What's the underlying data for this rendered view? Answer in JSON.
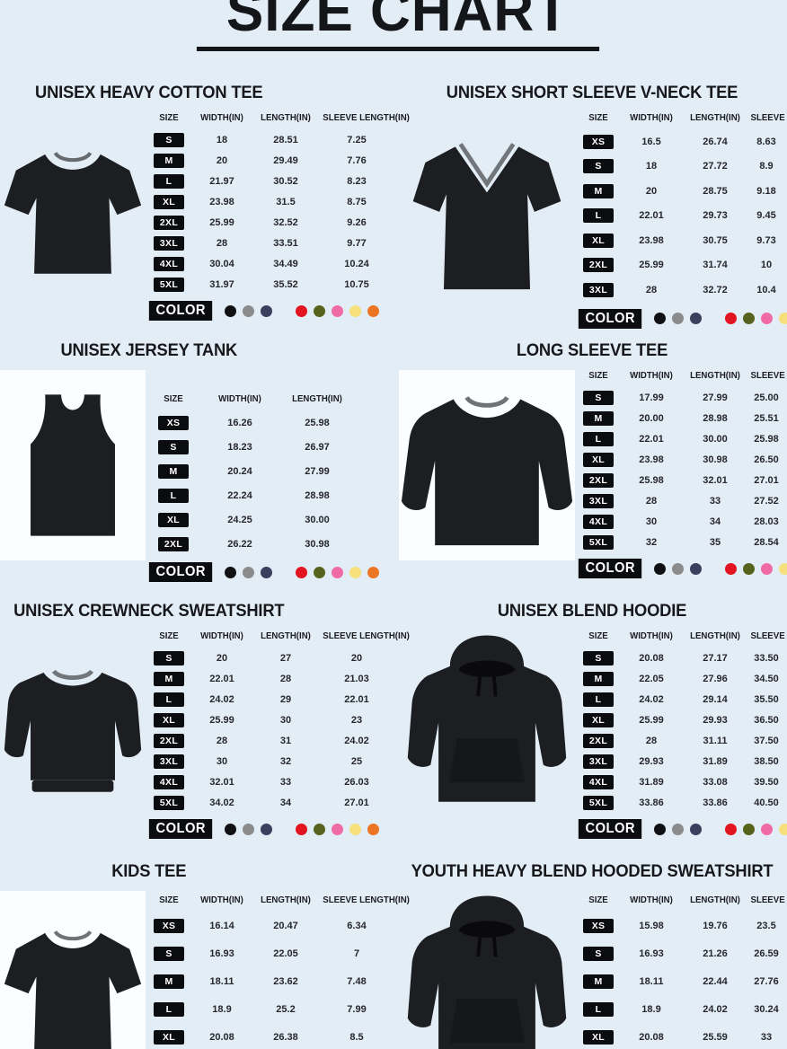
{
  "page": {
    "title": "SIZE CHART",
    "background": "#e3edf6"
  },
  "table_headers": {
    "size": "SIZE",
    "width": "WIDTH(IN)",
    "length": "LENGTH(IN)",
    "sleeve": "SLEEVE LENGTH(IN)"
  },
  "color_label": "COLOR",
  "sections": [
    {
      "title": "UNISEX HEAVY COTTON TEE",
      "garment": "tee",
      "has_sleeve_column": true,
      "rows": [
        {
          "size": "S",
          "width": "18",
          "length": "28.51",
          "sleeve": "7.25"
        },
        {
          "size": "M",
          "width": "20",
          "length": "29.49",
          "sleeve": "7.76"
        },
        {
          "size": "L",
          "width": "21.97",
          "length": "30.52",
          "sleeve": "8.23"
        },
        {
          "size": "XL",
          "width": "23.98",
          "length": "31.5",
          "sleeve": "8.75"
        },
        {
          "size": "2XL",
          "width": "25.99",
          "length": "32.52",
          "sleeve": "9.26"
        },
        {
          "size": "3XL",
          "width": "28",
          "length": "33.51",
          "sleeve": "9.77"
        },
        {
          "size": "4XL",
          "width": "30.04",
          "length": "34.49",
          "sleeve": "10.24"
        },
        {
          "size": "5XL",
          "width": "31.97",
          "length": "35.52",
          "sleeve": "10.75"
        }
      ],
      "color_groups": [
        [
          "#111114",
          "#8b8b8b",
          "#3c3f5e"
        ],
        [
          "#e1141f",
          "#57621c",
          "#f06ba6",
          "#f5e07c",
          "#ec7522"
        ]
      ]
    },
    {
      "title": "UNISEX SHORT SLEEVE V-NECK TEE",
      "garment": "vneck",
      "has_sleeve_column": true,
      "rows": [
        {
          "size": "XS",
          "width": "16.5",
          "length": "26.74",
          "sleeve": "8.63"
        },
        {
          "size": "S",
          "width": "18",
          "length": "27.72",
          "sleeve": "8.9"
        },
        {
          "size": "M",
          "width": "20",
          "length": "28.75",
          "sleeve": "9.18"
        },
        {
          "size": "L",
          "width": "22.01",
          "length": "29.73",
          "sleeve": "9.45"
        },
        {
          "size": "XL",
          "width": "23.98",
          "length": "30.75",
          "sleeve": "9.73"
        },
        {
          "size": "2XL",
          "width": "25.99",
          "length": "31.74",
          "sleeve": "10"
        },
        {
          "size": "3XL",
          "width": "28",
          "length": "32.72",
          "sleeve": "10.4"
        }
      ],
      "color_groups": [
        [
          "#111114",
          "#8b8b8b",
          "#3c3f5e"
        ],
        [
          "#e1141f",
          "#57621c",
          "#f06ba6",
          "#f5e07c",
          "#ec7522"
        ]
      ]
    },
    {
      "title": "UNISEX JERSEY TANK",
      "garment": "tank",
      "has_sleeve_column": false,
      "rows": [
        {
          "size": "XS",
          "width": "16.26",
          "length": "25.98"
        },
        {
          "size": "S",
          "width": "18.23",
          "length": "26.97"
        },
        {
          "size": "M",
          "width": "20.24",
          "length": "27.99"
        },
        {
          "size": "L",
          "width": "22.24",
          "length": "28.98"
        },
        {
          "size": "XL",
          "width": "24.25",
          "length": "30.00"
        },
        {
          "size": "2XL",
          "width": "26.22",
          "length": "30.98"
        }
      ],
      "color_groups": [
        [
          "#111114",
          "#8b8b8b",
          "#3c3f5e"
        ],
        [
          "#e1141f",
          "#57621c",
          "#f06ba6",
          "#f5e07c",
          "#ec7522"
        ]
      ]
    },
    {
      "title": "LONG SLEEVE TEE",
      "garment": "longsleeve",
      "has_sleeve_column": true,
      "rows": [
        {
          "size": "S",
          "width": "17.99",
          "length": "27.99",
          "sleeve": "25.00"
        },
        {
          "size": "M",
          "width": "20.00",
          "length": "28.98",
          "sleeve": "25.51"
        },
        {
          "size": "L",
          "width": "22.01",
          "length": "30.00",
          "sleeve": "25.98"
        },
        {
          "size": "XL",
          "width": "23.98",
          "length": "30.98",
          "sleeve": "26.50"
        },
        {
          "size": "2XL",
          "width": "25.98",
          "length": "32.01",
          "sleeve": "27.01"
        },
        {
          "size": "3XL",
          "width": "28",
          "length": "33",
          "sleeve": "27.52"
        },
        {
          "size": "4XL",
          "width": "30",
          "length": "34",
          "sleeve": "28.03"
        },
        {
          "size": "5XL",
          "width": "32",
          "length": "35",
          "sleeve": "28.54"
        }
      ],
      "color_groups": [
        [
          "#111114",
          "#8b8b8b",
          "#3c3f5e"
        ],
        [
          "#e1141f",
          "#57621c",
          "#f06ba6",
          "#f5e07c",
          "#ec7522"
        ]
      ]
    },
    {
      "title": "UNISEX CREWNECK SWEATSHIRT",
      "garment": "crewneck",
      "has_sleeve_column": true,
      "rows": [
        {
          "size": "S",
          "width": "20",
          "length": "27",
          "sleeve": "20"
        },
        {
          "size": "M",
          "width": "22.01",
          "length": "28",
          "sleeve": "21.03"
        },
        {
          "size": "L",
          "width": "24.02",
          "length": "29",
          "sleeve": "22.01"
        },
        {
          "size": "XL",
          "width": "25.99",
          "length": "30",
          "sleeve": "23"
        },
        {
          "size": "2XL",
          "width": "28",
          "length": "31",
          "sleeve": "24.02"
        },
        {
          "size": "3XL",
          "width": "30",
          "length": "32",
          "sleeve": "25"
        },
        {
          "size": "4XL",
          "width": "32.01",
          "length": "33",
          "sleeve": "26.03"
        },
        {
          "size": "5XL",
          "width": "34.02",
          "length": "34",
          "sleeve": "27.01"
        }
      ],
      "color_groups": [
        [
          "#111114",
          "#8b8b8b",
          "#3c3f5e"
        ],
        [
          "#e1141f",
          "#57621c",
          "#f06ba6",
          "#f5e07c",
          "#ec7522"
        ]
      ]
    },
    {
      "title": "UNISEX BLEND HOODIE",
      "garment": "hoodie",
      "has_sleeve_column": true,
      "rows": [
        {
          "size": "S",
          "width": "20.08",
          "length": "27.17",
          "sleeve": "33.50"
        },
        {
          "size": "M",
          "width": "22.05",
          "length": "27.96",
          "sleeve": "34.50"
        },
        {
          "size": "L",
          "width": "24.02",
          "length": "29.14",
          "sleeve": "35.50"
        },
        {
          "size": "XL",
          "width": "25.99",
          "length": "29.93",
          "sleeve": "36.50"
        },
        {
          "size": "2XL",
          "width": "28",
          "length": "31.11",
          "sleeve": "37.50"
        },
        {
          "size": "3XL",
          "width": "29.93",
          "length": "31.89",
          "sleeve": "38.50"
        },
        {
          "size": "4XL",
          "width": "31.89",
          "length": "33.08",
          "sleeve": "39.50"
        },
        {
          "size": "5XL",
          "width": "33.86",
          "length": "33.86",
          "sleeve": "40.50"
        }
      ],
      "color_groups": [
        [
          "#111114",
          "#8b8b8b",
          "#3c3f5e"
        ],
        [
          "#e1141f",
          "#57621c",
          "#f06ba6",
          "#f5e07c",
          "#ec7522"
        ]
      ]
    },
    {
      "title": "KIDS TEE",
      "garment": "tee",
      "has_sleeve_column": true,
      "rows": [
        {
          "size": "XS",
          "width": "16.14",
          "length": "20.47",
          "sleeve": "6.34"
        },
        {
          "size": "S",
          "width": "16.93",
          "length": "22.05",
          "sleeve": "7"
        },
        {
          "size": "M",
          "width": "18.11",
          "length": "23.62",
          "sleeve": "7.48"
        },
        {
          "size": "L",
          "width": "18.9",
          "length": "25.2",
          "sleeve": "7.99"
        },
        {
          "size": "XL",
          "width": "20.08",
          "length": "26.38",
          "sleeve": "8.5"
        }
      ],
      "color_groups": [
        [
          "#111114",
          "#8b8b8b",
          "#3c3f5e"
        ],
        [
          "#e1141f",
          "#8e1838",
          "#ef6ba4",
          "#f6d96d",
          "#149d4b"
        ]
      ]
    },
    {
      "title": "YOUTH HEAVY BLEND HOODED SWEATSHIRT",
      "garment": "hoodie",
      "has_sleeve_column": true,
      "rows": [
        {
          "size": "XS",
          "width": "15.98",
          "length": "19.76",
          "sleeve": "23.5"
        },
        {
          "size": "S",
          "width": "16.93",
          "length": "21.26",
          "sleeve": "26.59"
        },
        {
          "size": "M",
          "width": "18.11",
          "length": "22.44",
          "sleeve": "27.76"
        },
        {
          "size": "L",
          "width": "18.9",
          "length": "24.02",
          "sleeve": "30.24"
        },
        {
          "size": "XL",
          "width": "20.08",
          "length": "25.59",
          "sleeve": "33"
        }
      ],
      "color_groups": [
        [
          "#111114",
          "#8b8b8b",
          "#3c3f5e"
        ],
        [
          "#e1141f",
          "#8e1838",
          "#ef6ba4",
          "#f6d96d",
          "#149d4b"
        ]
      ]
    }
  ]
}
